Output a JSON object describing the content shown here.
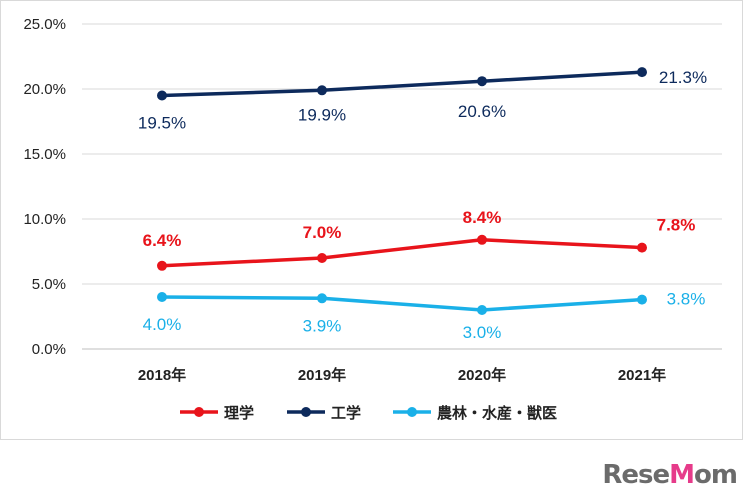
{
  "chart_data": {
    "type": "line",
    "categories": [
      "2018年",
      "2019年",
      "2020年",
      "2021年"
    ],
    "yticks": [
      "0.0%",
      "5.0%",
      "10.0%",
      "15.0%",
      "20.0%",
      "25.0%"
    ],
    "ylim": [
      0,
      25
    ],
    "grid": true,
    "legend_position": "bottom",
    "series": [
      {
        "name": "理学",
        "color": "#e8141b",
        "values": [
          6.4,
          7.0,
          8.4,
          7.8
        ],
        "labels": [
          "6.4%",
          "7.0%",
          "8.4%",
          "7.8%"
        ]
      },
      {
        "name": "工学",
        "color": "#0d2a5c",
        "values": [
          19.5,
          19.9,
          20.6,
          21.3
        ],
        "labels": [
          "19.5%",
          "19.9%",
          "20.6%",
          "21.3%"
        ]
      },
      {
        "name": "農林・水産・獣医",
        "color": "#1ab0e8",
        "values": [
          4.0,
          3.9,
          3.0,
          3.8
        ],
        "labels": [
          "4.0%",
          "3.9%",
          "3.0%",
          "3.8%"
        ]
      }
    ]
  },
  "watermark": {
    "text": "ReseMom",
    "accent_color": "#e63b8a"
  }
}
